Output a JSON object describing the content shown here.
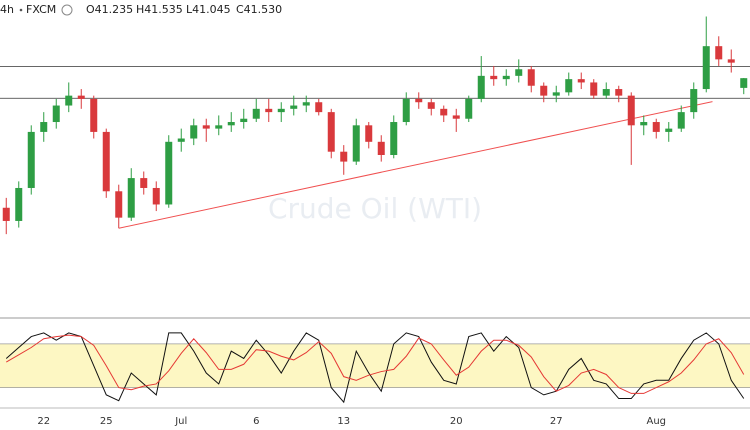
{
  "chart_data": {
    "type": "candlestick",
    "header": {
      "interval": "4h",
      "source": "FXCM",
      "ohlc": [
        "O41.235",
        "H41.535",
        "L41.045",
        "C41.530"
      ]
    },
    "watermark": "Crude Oil (WTI)",
    "up_color": "#2e9e44",
    "down_color": "#d9393c",
    "ylim": [
      34.5,
      43.9
    ],
    "categories": [
      null,
      null,
      null,
      "22",
      null,
      null,
      null,
      null,
      "25",
      null,
      null,
      null,
      null,
      null,
      "Jul",
      null,
      null,
      null,
      null,
      null,
      "6",
      null,
      null,
      null,
      null,
      null,
      null,
      "13",
      null,
      null,
      null,
      null,
      null,
      null,
      null,
      null,
      "20",
      null,
      null,
      null,
      null,
      null,
      null,
      null,
      "27",
      null,
      null,
      null,
      null,
      null,
      null,
      null,
      "Aug",
      null,
      null,
      null,
      null,
      null,
      null,
      null
    ],
    "candles": [
      [
        37.6,
        37.9,
        36.8,
        37.2
      ],
      [
        37.2,
        38.4,
        37.0,
        38.2
      ],
      [
        38.2,
        40.1,
        38.0,
        39.9
      ],
      [
        39.9,
        40.5,
        39.6,
        40.2
      ],
      [
        40.2,
        40.9,
        40.0,
        40.7
      ],
      [
        40.7,
        41.4,
        40.5,
        41.0
      ],
      [
        41.0,
        41.2,
        40.6,
        40.9
      ],
      [
        40.9,
        41.0,
        39.7,
        39.9
      ],
      [
        39.9,
        40.0,
        37.9,
        38.1
      ],
      [
        38.1,
        38.3,
        36.98,
        37.3
      ],
      [
        37.3,
        38.8,
        37.2,
        38.5
      ],
      [
        38.5,
        38.7,
        38.0,
        38.2
      ],
      [
        38.2,
        38.4,
        37.5,
        37.7
      ],
      [
        37.7,
        39.8,
        37.6,
        39.6
      ],
      [
        39.6,
        40.0,
        39.3,
        39.7
      ],
      [
        39.7,
        40.3,
        39.5,
        40.1
      ],
      [
        40.1,
        40.3,
        39.6,
        40.0
      ],
      [
        40.0,
        40.4,
        39.8,
        40.1
      ],
      [
        40.1,
        40.5,
        39.9,
        40.2
      ],
      [
        40.2,
        40.6,
        40.0,
        40.3
      ],
      [
        40.3,
        40.9,
        40.2,
        40.6
      ],
      [
        40.6,
        40.9,
        40.2,
        40.5
      ],
      [
        40.5,
        40.8,
        40.2,
        40.6
      ],
      [
        40.6,
        41.0,
        40.4,
        40.7
      ],
      [
        40.7,
        41.0,
        40.5,
        40.8
      ],
      [
        40.8,
        40.9,
        40.4,
        40.5
      ],
      [
        40.5,
        40.6,
        39.1,
        39.3
      ],
      [
        39.3,
        39.5,
        38.6,
        39.0
      ],
      [
        39.0,
        40.3,
        38.9,
        40.1
      ],
      [
        40.1,
        40.2,
        39.4,
        39.6
      ],
      [
        39.6,
        39.8,
        39.0,
        39.2
      ],
      [
        39.2,
        40.4,
        39.1,
        40.2
      ],
      [
        40.2,
        41.1,
        40.1,
        40.9
      ],
      [
        40.9,
        41.1,
        40.6,
        40.8
      ],
      [
        40.8,
        40.9,
        40.4,
        40.6
      ],
      [
        40.6,
        40.7,
        40.2,
        40.4
      ],
      [
        40.4,
        40.6,
        39.9,
        40.3
      ],
      [
        40.3,
        41.0,
        40.2,
        40.9
      ],
      [
        40.9,
        42.2,
        40.8,
        41.6
      ],
      [
        41.6,
        41.9,
        41.3,
        41.5
      ],
      [
        41.5,
        41.8,
        41.3,
        41.6
      ],
      [
        41.6,
        42.1,
        41.4,
        41.8
      ],
      [
        41.8,
        41.9,
        41.1,
        41.3
      ],
      [
        41.3,
        41.4,
        40.8,
        41.0
      ],
      [
        41.0,
        41.3,
        40.8,
        41.1
      ],
      [
        41.1,
        41.7,
        41.0,
        41.5
      ],
      [
        41.5,
        41.7,
        41.2,
        41.4
      ],
      [
        41.4,
        41.5,
        40.9,
        41.0
      ],
      [
        41.0,
        41.4,
        40.9,
        41.2
      ],
      [
        41.2,
        41.3,
        40.8,
        41.0
      ],
      [
        41.0,
        41.1,
        38.9,
        40.1
      ],
      [
        40.1,
        40.4,
        39.8,
        40.2
      ],
      [
        40.2,
        40.3,
        39.7,
        39.9
      ],
      [
        39.9,
        40.2,
        39.6,
        40.0
      ],
      [
        40.0,
        40.7,
        39.9,
        40.5
      ],
      [
        40.5,
        41.4,
        40.3,
        41.2
      ],
      [
        41.2,
        43.4,
        41.1,
        42.5
      ],
      [
        42.5,
        42.8,
        41.9,
        42.1
      ],
      [
        42.1,
        42.4,
        41.7,
        42.0
      ],
      [
        41.235,
        41.535,
        41.045,
        41.53
      ]
    ],
    "hlines": [
      41.88,
      40.92
    ],
    "trendline": {
      "color": "#f05050",
      "values": [
        36.98,
        40.82
      ]
    },
    "stochastic": {
      "ylim": [
        -8,
        110
      ],
      "band": [
        20,
        80
      ],
      "band_color": "#fdf7c3",
      "series": [
        {
          "color": "#111111",
          "values": [
            60,
            75,
            90,
            95,
            85,
            95,
            90,
            50,
            10,
            2,
            40,
            25,
            10,
            95,
            95,
            70,
            40,
            25,
            70,
            60,
            85,
            65,
            40,
            70,
            95,
            85,
            20,
            0,
            70,
            40,
            15,
            80,
            95,
            90,
            55,
            30,
            25,
            90,
            95,
            70,
            90,
            75,
            20,
            10,
            15,
            45,
            60,
            30,
            25,
            5,
            5,
            25,
            30,
            30,
            60,
            85,
            95,
            80,
            30,
            5
          ]
        },
        {
          "color": "#e53935",
          "values": [
            55,
            65,
            75,
            87,
            90,
            92,
            90,
            78,
            50,
            20,
            17,
            22,
            25,
            43,
            67,
            87,
            68,
            45,
            45,
            52,
            72,
            70,
            63,
            58,
            68,
            83,
            67,
            35,
            30,
            37,
            42,
            45,
            63,
            88,
            80,
            58,
            37,
            48,
            70,
            85,
            85,
            78,
            62,
            35,
            15,
            23,
            40,
            45,
            38,
            20,
            12,
            12,
            20,
            28,
            40,
            58,
            80,
            87,
            68,
            38
          ]
        }
      ]
    }
  }
}
